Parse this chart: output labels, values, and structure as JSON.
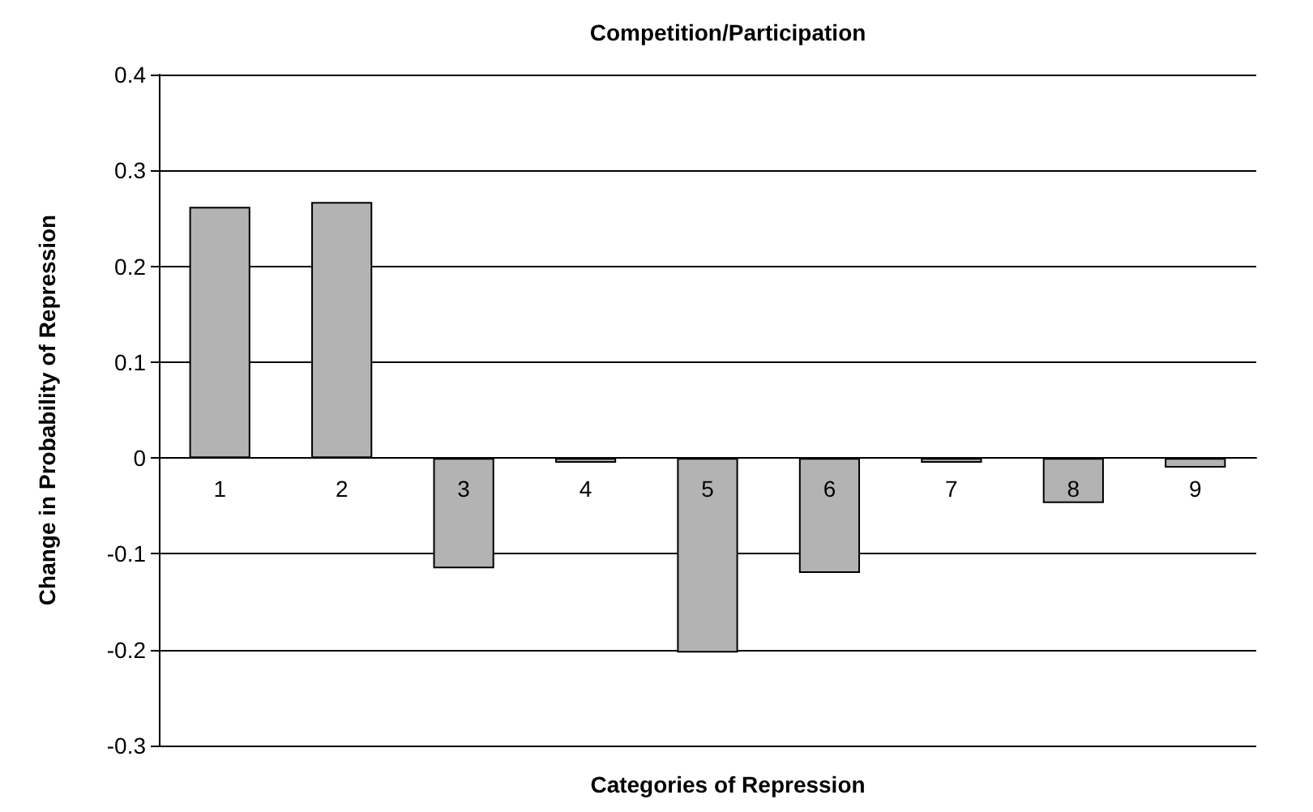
{
  "chart_data": {
    "type": "bar",
    "title": "Competition/Participation",
    "xlabel": "Categories of Repression",
    "ylabel": "Change in Probability of Repression",
    "categories": [
      "1",
      "2",
      "3",
      "4",
      "5",
      "6",
      "7",
      "8",
      "9"
    ],
    "values": [
      0.262,
      0.267,
      -0.115,
      -0.005,
      -0.203,
      -0.12,
      -0.005,
      -0.047,
      -0.01
    ],
    "color": "#b3b3b3",
    "ylim": [
      -0.3,
      0.4
    ],
    "yticks": [
      -0.3,
      -0.2,
      -0.1,
      0,
      0.1,
      0.2,
      0.3,
      0.4
    ],
    "grid": "y"
  }
}
